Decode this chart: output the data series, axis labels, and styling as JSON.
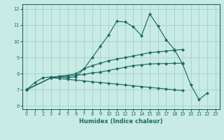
{
  "xlabel": "Humidex (Indice chaleur)",
  "bg_color": "#c8ebe5",
  "grid_color": "#9dccc4",
  "line_color": "#1e6b60",
  "xlim": [
    -0.5,
    23.5
  ],
  "ylim": [
    5.8,
    12.3
  ],
  "yticks": [
    6,
    7,
    8,
    9,
    10,
    11,
    12
  ],
  "xticks": [
    0,
    1,
    2,
    3,
    4,
    5,
    6,
    7,
    8,
    9,
    10,
    11,
    12,
    13,
    14,
    15,
    16,
    17,
    18,
    19,
    20,
    21,
    22,
    23
  ],
  "lines": [
    {
      "x": [
        0,
        1,
        2,
        3,
        4,
        5,
        6,
        7,
        8,
        9,
        10,
        11,
        12,
        13,
        14,
        15,
        16,
        17,
        18,
        19,
        20,
        21,
        22
      ],
      "y": [
        7.0,
        7.45,
        7.75,
        7.8,
        7.8,
        7.75,
        7.8,
        8.3,
        9.0,
        9.7,
        10.4,
        11.25,
        11.2,
        10.9,
        10.35,
        11.7,
        10.95,
        10.1,
        9.5,
        8.6,
        7.3,
        6.4,
        6.8
      ]
    },
    {
      "x": [
        0,
        3,
        4,
        5,
        6,
        7,
        8,
        9,
        10,
        11,
        12,
        13,
        14,
        15,
        16,
        17,
        18,
        19
      ],
      "y": [
        7.0,
        7.75,
        7.85,
        7.9,
        8.0,
        8.3,
        8.5,
        8.65,
        8.8,
        8.9,
        9.0,
        9.1,
        9.2,
        9.3,
        9.35,
        9.4,
        9.45,
        9.5
      ]
    },
    {
      "x": [
        0,
        3,
        4,
        5,
        6,
        7,
        8,
        9,
        10,
        11,
        12,
        13,
        14,
        15,
        16,
        17,
        18,
        19
      ],
      "y": [
        7.0,
        7.75,
        7.8,
        7.85,
        7.9,
        7.95,
        8.05,
        8.1,
        8.2,
        8.3,
        8.4,
        8.5,
        8.55,
        8.6,
        8.62,
        8.63,
        8.64,
        8.65
      ]
    },
    {
      "x": [
        0,
        3,
        4,
        5,
        6,
        7,
        8,
        9,
        10,
        11,
        12,
        13,
        14,
        15,
        16,
        17,
        18,
        19
      ],
      "y": [
        7.0,
        7.75,
        7.7,
        7.65,
        7.6,
        7.55,
        7.5,
        7.45,
        7.4,
        7.35,
        7.3,
        7.25,
        7.2,
        7.15,
        7.1,
        7.05,
        7.0,
        6.95
      ]
    }
  ]
}
